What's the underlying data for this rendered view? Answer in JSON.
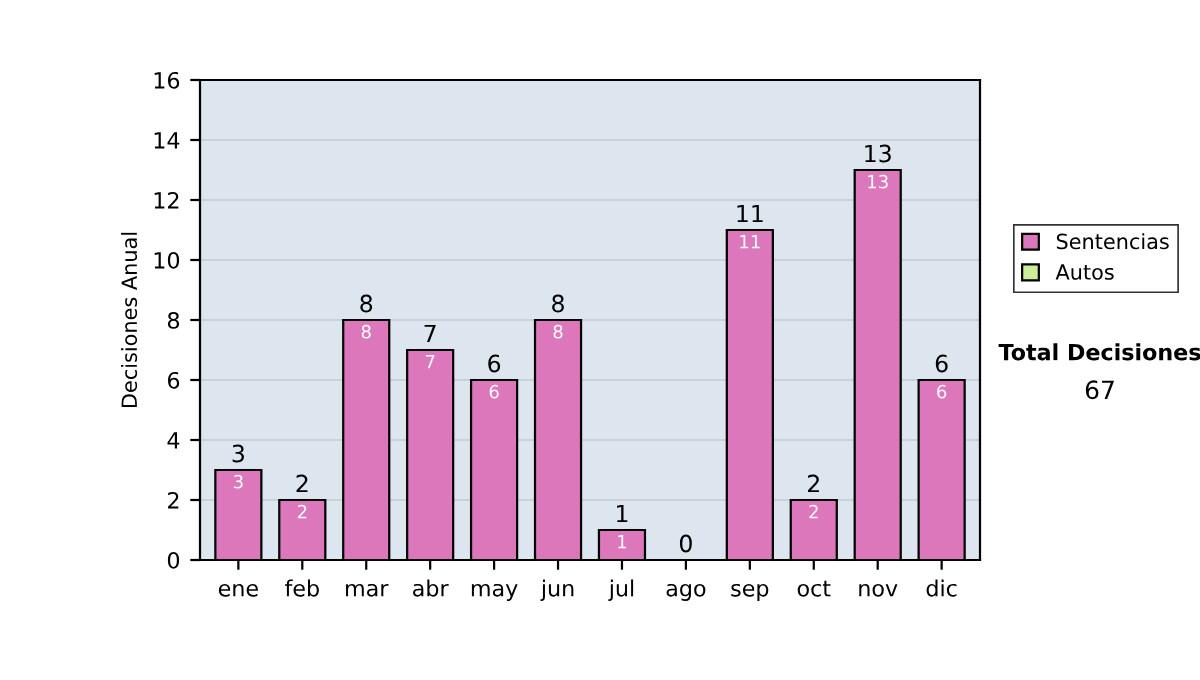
{
  "chart_data": {
    "type": "bar",
    "ylabel": "Decisiones Anual",
    "categories": [
      "ene",
      "feb",
      "mar",
      "abr",
      "may",
      "jun",
      "jul",
      "ago",
      "sep",
      "oct",
      "nov",
      "dic"
    ],
    "series": [
      {
        "name": "Sentencias",
        "color": "#dd77bb",
        "values": [
          3,
          2,
          8,
          7,
          6,
          8,
          1,
          0,
          11,
          2,
          13,
          6
        ],
        "value_labels": [
          "3",
          "2",
          "8",
          "7",
          "6",
          "8",
          "1",
          null,
          "11",
          "2",
          "13",
          "6"
        ]
      },
      {
        "name": "Autos",
        "color": "#ccee99",
        "values": [
          0,
          0,
          0,
          0,
          0,
          0,
          0,
          0,
          0,
          0,
          0,
          0
        ]
      }
    ],
    "stacked": true,
    "totals": [
      "3",
      "2",
      "8",
      "7",
      "6",
      "8",
      "1",
      "0",
      "11",
      "2",
      "13",
      "6"
    ],
    "ylim": [
      0,
      16
    ],
    "yticks": [
      0,
      2,
      4,
      6,
      8,
      10,
      12,
      14,
      16
    ],
    "grid": "y",
    "legend": "right",
    "annotations": [
      "Total Decisiones",
      "67"
    ]
  }
}
